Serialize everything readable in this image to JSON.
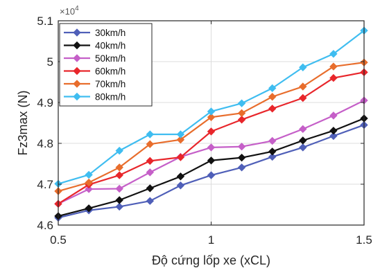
{
  "chart_data": {
    "type": "line",
    "title": "",
    "xlabel": "Độ cứng lốp xe (xCL)",
    "ylabel": "Fz3max (N)",
    "y_exponent_label": "×10",
    "y_exponent_power": "4",
    "x": [
      0.5,
      0.6,
      0.7,
      0.8,
      0.9,
      1.0,
      1.1,
      1.2,
      1.3,
      1.4,
      1.5
    ],
    "xlim": [
      0.5,
      1.5
    ],
    "ylim": [
      4.6,
      5.1
    ],
    "x_ticks": [
      0.5,
      1,
      1.5
    ],
    "x_tick_labels": [
      "0.5",
      "1",
      "1.5"
    ],
    "y_ticks": [
      4.6,
      4.7,
      4.8,
      4.9,
      5.0,
      5.1
    ],
    "y_tick_labels": [
      "4.6",
      "4.7",
      "4.8",
      "4.9",
      "5",
      "5.1"
    ],
    "grid": true,
    "legend_position": "top-left",
    "series": [
      {
        "name": "30km/h",
        "color": "#4f5fb8",
        "marker": "diamond",
        "values": [
          4.618,
          4.636,
          4.645,
          4.659,
          4.697,
          4.722,
          4.741,
          4.767,
          4.79,
          4.818,
          4.845
        ]
      },
      {
        "name": "40km/h",
        "color": "#111111",
        "marker": "diamond",
        "values": [
          4.622,
          4.641,
          4.661,
          4.69,
          4.719,
          4.758,
          4.765,
          4.78,
          4.807,
          4.831,
          4.861
        ]
      },
      {
        "name": "50km/h",
        "color": "#c55fc8",
        "marker": "diamond",
        "values": [
          4.652,
          4.688,
          4.689,
          4.729,
          4.767,
          4.79,
          4.792,
          4.806,
          4.835,
          4.868,
          4.905
        ]
      },
      {
        "name": "60km/h",
        "color": "#e8262b",
        "marker": "diamond",
        "values": [
          4.652,
          4.699,
          4.722,
          4.757,
          4.766,
          4.829,
          4.858,
          4.885,
          4.911,
          4.96,
          4.974
        ]
      },
      {
        "name": "70km/h",
        "color": "#e86d2c",
        "marker": "diamond",
        "values": [
          4.683,
          4.704,
          4.741,
          4.798,
          4.809,
          4.864,
          4.874,
          4.914,
          4.939,
          4.988,
          4.998
        ]
      },
      {
        "name": "80km/h",
        "color": "#3fbdf0",
        "marker": "diamond",
        "values": [
          4.701,
          4.723,
          4.782,
          4.822,
          4.822,
          4.878,
          4.898,
          4.935,
          4.986,
          5.019,
          5.076
        ]
      }
    ]
  }
}
